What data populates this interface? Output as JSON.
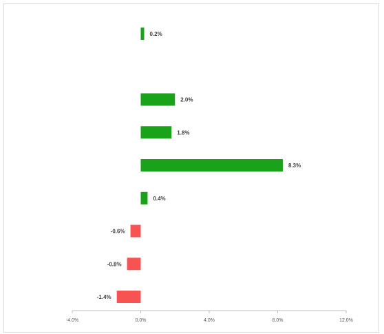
{
  "chart_data": {
    "type": "bar",
    "orientation": "horizontal",
    "title": "",
    "xlabel": "",
    "ylabel": "",
    "xlim": [
      -4.0,
      12.0
    ],
    "x_ticks": [
      -4.0,
      0.0,
      4.0,
      8.0,
      12.0
    ],
    "x_tick_labels": [
      "-4.0%",
      "0.0%",
      "4.0%",
      "8.0%",
      "12.0%"
    ],
    "grid": false,
    "legend": "none",
    "rows": [
      {
        "value": 0.2,
        "label": "0.2%"
      },
      {
        "value": null,
        "label": ""
      },
      {
        "value": 2.0,
        "label": "2.0%"
      },
      {
        "value": 1.8,
        "label": "1.8%"
      },
      {
        "value": 8.3,
        "label": "8.3%"
      },
      {
        "value": 0.4,
        "label": "0.4%"
      },
      {
        "value": -0.6,
        "label": "-0.6%"
      },
      {
        "value": -0.8,
        "label": "-0.8%"
      },
      {
        "value": -1.4,
        "label": "-1.4%"
      }
    ],
    "colors": {
      "positive": "#1aa31a",
      "negative": "#f75353",
      "axis": "#bfbfbf"
    }
  }
}
